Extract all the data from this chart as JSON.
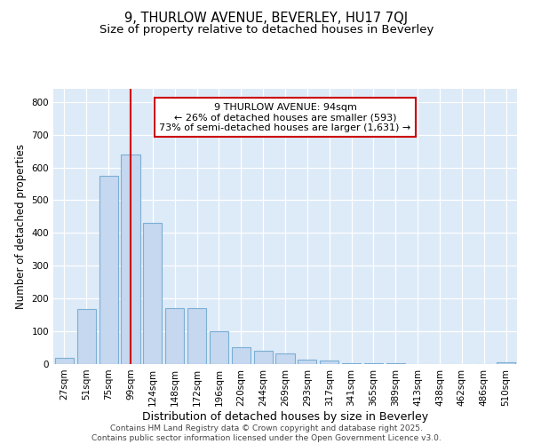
{
  "title_line1": "9, THURLOW AVENUE, BEVERLEY, HU17 7QJ",
  "title_line2": "Size of property relative to detached houses in Beverley",
  "xlabel": "Distribution of detached houses by size in Beverley",
  "ylabel": "Number of detached properties",
  "categories": [
    "27sqm",
    "51sqm",
    "75sqm",
    "99sqm",
    "124sqm",
    "148sqm",
    "172sqm",
    "196sqm",
    "220sqm",
    "244sqm",
    "269sqm",
    "293sqm",
    "317sqm",
    "341sqm",
    "365sqm",
    "389sqm",
    "413sqm",
    "438sqm",
    "462sqm",
    "486sqm",
    "510sqm"
  ],
  "values": [
    20,
    168,
    575,
    640,
    430,
    170,
    170,
    100,
    52,
    42,
    33,
    13,
    10,
    3,
    2,
    2,
    1,
    1,
    0,
    0,
    5
  ],
  "bar_color": "#c5d8f0",
  "bar_edge_color": "#7bafd4",
  "annotation_text": "9 THURLOW AVENUE: 94sqm\n← 26% of detached houses are smaller (593)\n73% of semi-detached houses are larger (1,631) →",
  "annotation_box_color": "#ffffff",
  "annotation_box_edge_color": "#cc0000",
  "property_line_color": "#cc0000",
  "ylim": [
    0,
    840
  ],
  "yticks": [
    0,
    100,
    200,
    300,
    400,
    500,
    600,
    700,
    800
  ],
  "plot_bg_color": "#ddeaf7",
  "footer_text": "Contains HM Land Registry data © Crown copyright and database right 2025.\nContains public sector information licensed under the Open Government Licence v3.0.",
  "title_fontsize": 10.5,
  "subtitle_fontsize": 9.5,
  "ylabel_fontsize": 8.5,
  "xlabel_fontsize": 9,
  "tick_fontsize": 7.5,
  "annotation_fontsize": 8,
  "footer_fontsize": 6.5,
  "red_line_x": 3.0
}
